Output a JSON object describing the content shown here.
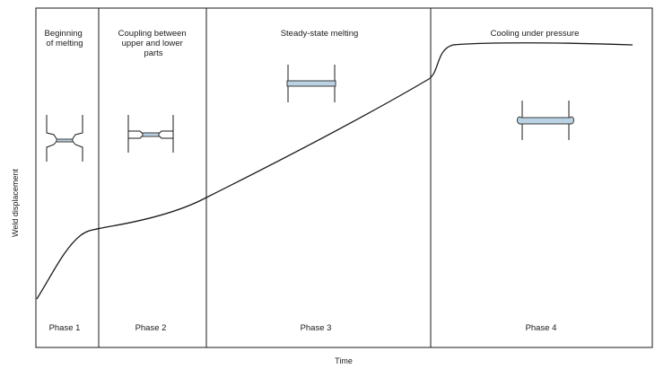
{
  "axes": {
    "x_label": "Time",
    "y_label": "Weld displacement"
  },
  "phases": [
    {
      "title_lines": [
        "Beginning",
        "of melting"
      ],
      "label": "Phase 1"
    },
    {
      "title_lines": [
        "Coupling between",
        "upper and lower",
        "parts"
      ],
      "label": "Phase 2"
    },
    {
      "title_lines": [
        "Steady-state melting"
      ],
      "label": "Phase 3"
    },
    {
      "title_lines": [
        "Cooling under pressure"
      ],
      "label": "Phase 4"
    }
  ],
  "colors": {
    "line": "#1a1a1a",
    "melt_fill": "#b9d3e4",
    "melt_stroke": "#3a3a3a"
  }
}
